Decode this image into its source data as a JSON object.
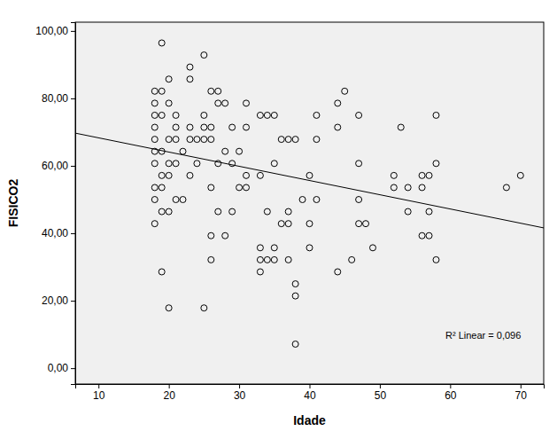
{
  "chart_data": {
    "type": "scatter",
    "x_label": "Idade",
    "y_label": "FISICO2",
    "annotation": "R² Linear = 0,096",
    "marker": "circle-open",
    "color": "#000000",
    "x": [
      18,
      18,
      18,
      18,
      18,
      18,
      18,
      18,
      18,
      18,
      19,
      19,
      19,
      19,
      19,
      19,
      19,
      19,
      20,
      20,
      20,
      20,
      20,
      20,
      20,
      21,
      21,
      21,
      21,
      21,
      22,
      22,
      23,
      23,
      23,
      23,
      23,
      24,
      24,
      25,
      25,
      25,
      25,
      25,
      26,
      26,
      26,
      26,
      26,
      26,
      27,
      27,
      27,
      27,
      28,
      28,
      28,
      29,
      29,
      29,
      30,
      30,
      31,
      31,
      31,
      31,
      33,
      33,
      33,
      33,
      33,
      34,
      34,
      34,
      35,
      35,
      35,
      35,
      36,
      36,
      37,
      37,
      37,
      37,
      38,
      38,
      38,
      38,
      39,
      40,
      40,
      40,
      41,
      41,
      41,
      44,
      44,
      44,
      45,
      46,
      47,
      47,
      47,
      47,
      48,
      49,
      52,
      52,
      53,
      54,
      54,
      56,
      56,
      56,
      57,
      57,
      57,
      58,
      58,
      58,
      68,
      70
    ],
    "values": [
      82.14,
      78.57,
      75,
      71.43,
      67.86,
      64.29,
      60.71,
      53.57,
      50,
      42.86,
      96.43,
      82.14,
      75,
      64.29,
      57.14,
      53.57,
      46.43,
      28.57,
      85.71,
      78.57,
      67.86,
      60.71,
      57.14,
      46.43,
      17.86,
      75,
      71.43,
      67.86,
      60.71,
      50,
      64.29,
      50,
      89.29,
      85.71,
      71.43,
      67.86,
      57.14,
      67.86,
      60.71,
      92.86,
      75,
      71.43,
      67.86,
      17.86,
      82.14,
      71.43,
      67.86,
      53.57,
      39.29,
      32.14,
      82.14,
      78.57,
      60.71,
      46.43,
      78.57,
      64.29,
      39.29,
      71.43,
      60.71,
      46.43,
      64.29,
      53.57,
      78.57,
      71.43,
      57.14,
      53.57,
      75,
      57.14,
      35.71,
      32.14,
      28.57,
      75,
      46.43,
      32.14,
      75,
      60.71,
      35.71,
      32.14,
      67.86,
      42.86,
      67.86,
      46.43,
      42.86,
      32.14,
      67.86,
      25,
      21.43,
      7.14,
      50,
      57.14,
      42.86,
      35.71,
      75,
      67.86,
      50,
      78.57,
      71.43,
      28.57,
      82.14,
      32.14,
      75,
      60.71,
      50,
      42.86,
      42.86,
      35.71,
      57.14,
      53.57,
      71.43,
      53.57,
      46.43,
      57.14,
      53.57,
      39.29,
      57.14,
      46.43,
      39.29,
      75,
      60.71,
      32.14,
      53.57,
      57.14
    ],
    "fit_line": {
      "x": [
        6.7,
        73.3
      ],
      "y": [
        69.7,
        41.6
      ]
    },
    "xlim": [
      6.7,
      73.3
    ],
    "xticks": [
      10,
      20,
      30,
      40,
      50,
      60,
      70
    ],
    "ylim": [
      -4.7,
      102.6
    ],
    "yticks": [
      {
        "value": 0,
        "label": "0,00"
      },
      {
        "value": 20,
        "label": "20,00"
      },
      {
        "value": 40,
        "label": "40,00"
      },
      {
        "value": 60,
        "label": "60,00"
      },
      {
        "value": 80,
        "label": "80,00"
      },
      {
        "value": 100,
        "label": "100,00"
      }
    ],
    "grid": false
  }
}
